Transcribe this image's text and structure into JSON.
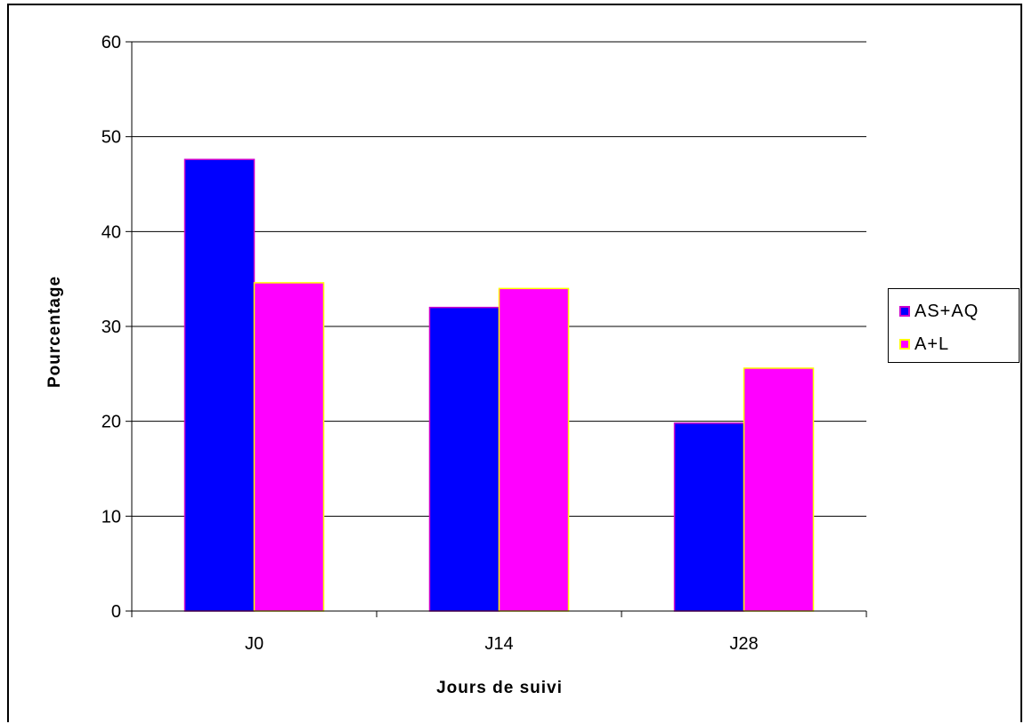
{
  "chart_data": {
    "type": "bar",
    "title": "",
    "xlabel": "Jours de suivi",
    "ylabel": "Pourcentage",
    "categories": [
      "J0",
      "J14",
      "J28"
    ],
    "ylim": [
      0,
      60
    ],
    "yticks": [
      0,
      10,
      20,
      30,
      40,
      50,
      60
    ],
    "grid": true,
    "legend_position": "right",
    "series": [
      {
        "name": "AS+AQ",
        "values": [
          47.6,
          32.0,
          19.8
        ],
        "color": "#0000ff",
        "border": "#cc00cc"
      },
      {
        "name": "A+L",
        "values": [
          34.6,
          34.0,
          25.6
        ],
        "color": "#ff00ff",
        "border": "#ffff00"
      }
    ]
  }
}
